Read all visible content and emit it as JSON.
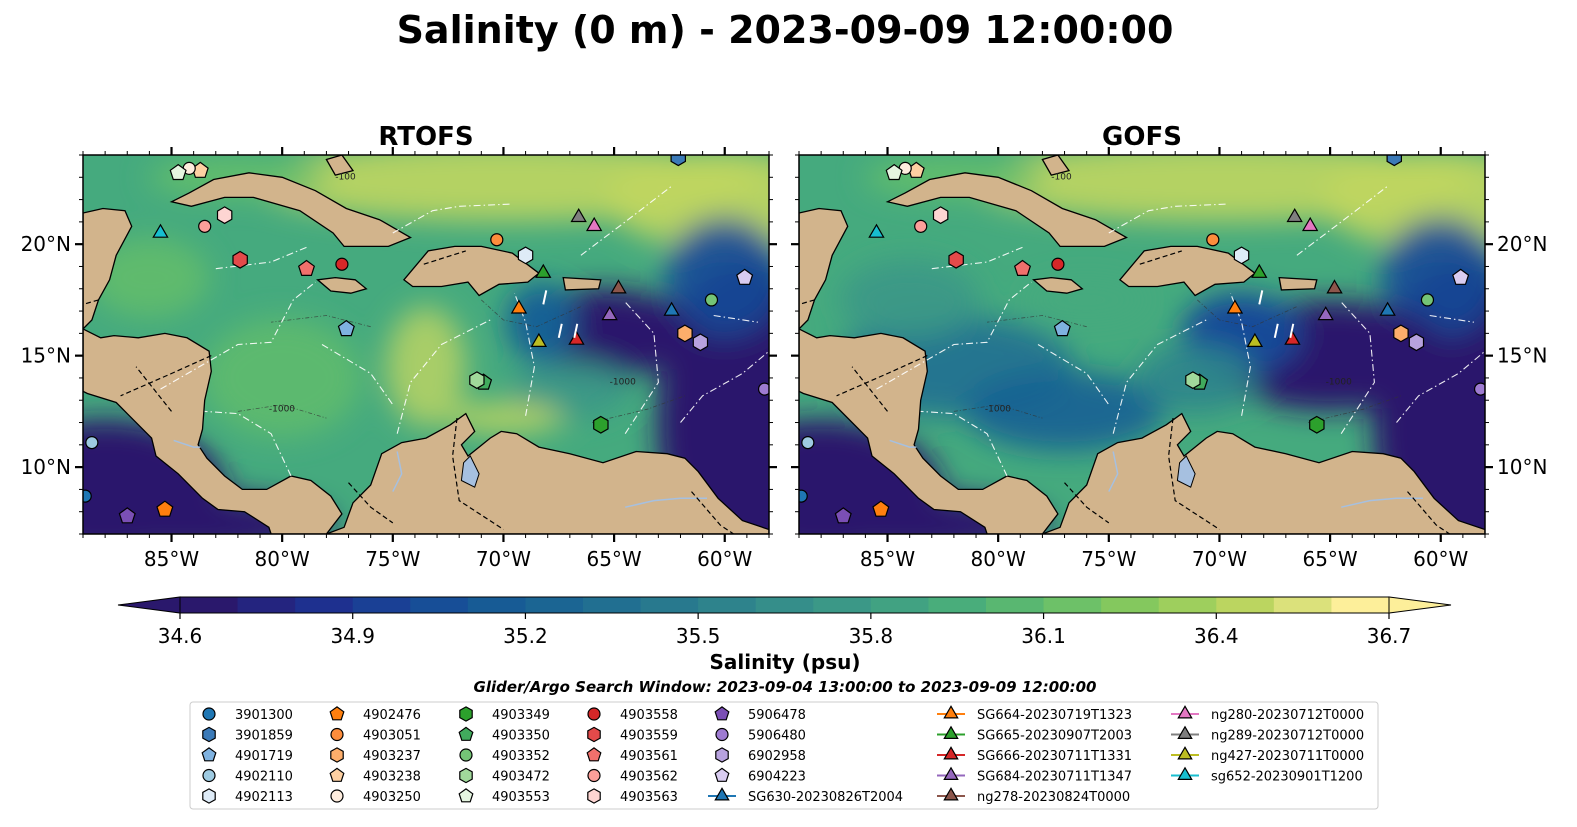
{
  "figure": {
    "title": "Salinity (0 m) - 2023-09-09 12:00:00",
    "subtitle": "Glider/Argo Search Window: 2023-09-04 13:00:00 to 2023-09-09 12:00:00"
  },
  "panels": [
    {
      "title": "RTOFS",
      "variant": "rtofs"
    },
    {
      "title": "GOFS",
      "variant": "gofs"
    }
  ],
  "map": {
    "lon_range": [
      -89,
      -58
    ],
    "lat_range": [
      7,
      24
    ],
    "lon_ticks": [
      {
        "v": -85,
        "label": "85°W"
      },
      {
        "v": -80,
        "label": "80°W"
      },
      {
        "v": -75,
        "label": "75°W"
      },
      {
        "v": -70,
        "label": "70°W"
      },
      {
        "v": -65,
        "label": "65°W"
      },
      {
        "v": -60,
        "label": "60°W"
      }
    ],
    "lat_ticks": [
      {
        "v": 20,
        "label": "20°N"
      },
      {
        "v": 15,
        "label": "15°N"
      },
      {
        "v": 10,
        "label": "10°N"
      }
    ],
    "land_color": "#d2b48c",
    "lake_color": "#a6c0e0",
    "contour_labels": [
      "-100",
      "-1000"
    ]
  },
  "colorbar": {
    "label": "Salinity (psu)",
    "min": 34.6,
    "max": 36.7,
    "ticks": [
      "34.6",
      "34.9",
      "35.2",
      "35.5",
      "35.8",
      "36.1",
      "36.4",
      "36.7"
    ],
    "colormap": "haline",
    "extend": "both"
  },
  "chart_data": {
    "type": "heatmap",
    "title": "Salinity (0 m) - 2023-09-09 12:00:00",
    "panels": [
      "RTOFS",
      "GOFS"
    ],
    "variable": "Salinity",
    "unit": "psu",
    "depth": "0 m",
    "time": "2023-09-09 12:00:00",
    "color_range": [
      34.6,
      36.7
    ],
    "xlabel": "",
    "ylabel": "",
    "xlim": [
      -89,
      -58
    ],
    "ylim": [
      7,
      24
    ],
    "legend_placement": "below",
    "floats": [
      {
        "id": "3901300",
        "marker": "circle",
        "color": "#1f77b4",
        "lon": -88.9,
        "lat": 8.7
      },
      {
        "id": "3901859",
        "marker": "hexagon",
        "color": "#3b7ab8",
        "lon": -62.1,
        "lat": 23.9
      },
      {
        "id": "4901719",
        "marker": "pentagon",
        "color": "#7fb2e0",
        "lon": -77.1,
        "lat": 16.2
      },
      {
        "id": "4902110",
        "marker": "circle",
        "color": "#9ecae1",
        "lon": -88.6,
        "lat": 11.1
      },
      {
        "id": "4902113",
        "marker": "hexagon",
        "color": "#deebf7",
        "lon": -69.0,
        "lat": 19.5
      },
      {
        "id": "4902476",
        "marker": "pentagon",
        "color": "#ff7f0e",
        "lon": -85.3,
        "lat": 8.1
      },
      {
        "id": "4903051",
        "marker": "circle",
        "color": "#fd8d3c",
        "lon": -70.3,
        "lat": 20.2
      },
      {
        "id": "4903237",
        "marker": "hexagon",
        "color": "#fdae6b",
        "lon": -61.8,
        "lat": 16.0
      },
      {
        "id": "4903238",
        "marker": "pentagon",
        "color": "#fdd0a2",
        "lon": -83.7,
        "lat": 23.3
      },
      {
        "id": "4903250",
        "marker": "circle",
        "color": "#feedde",
        "lon": -84.2,
        "lat": 23.4
      },
      {
        "id": "4903349",
        "marker": "hexagon",
        "color": "#2ca02c",
        "lon": -65.6,
        "lat": 11.9
      },
      {
        "id": "4903350",
        "marker": "pentagon",
        "color": "#41ab5d",
        "lon": -70.9,
        "lat": 13.8
      },
      {
        "id": "4903352",
        "marker": "circle",
        "color": "#74c476",
        "lon": -60.6,
        "lat": 17.5
      },
      {
        "id": "4903472",
        "marker": "hexagon",
        "color": "#a1d99b",
        "lon": -71.2,
        "lat": 13.9
      },
      {
        "id": "4903553",
        "marker": "pentagon",
        "color": "#e5f5e0",
        "lon": -84.7,
        "lat": 23.2
      },
      {
        "id": "4903558",
        "marker": "circle",
        "color": "#d62728",
        "lon": -77.3,
        "lat": 19.1
      },
      {
        "id": "4903559",
        "marker": "hexagon",
        "color": "#e34a4a",
        "lon": -81.9,
        "lat": 19.3
      },
      {
        "id": "4903561",
        "marker": "pentagon",
        "color": "#f0706c",
        "lon": -78.9,
        "lat": 18.9
      },
      {
        "id": "4903562",
        "marker": "circle",
        "color": "#fc9f9a",
        "lon": -83.5,
        "lat": 20.8
      },
      {
        "id": "4903563",
        "marker": "hexagon",
        "color": "#fdd5d2",
        "lon": -82.6,
        "lat": 21.3
      },
      {
        "id": "5906478",
        "marker": "pentagon",
        "color": "#7b4fb5",
        "lon": -87.0,
        "lat": 7.8
      },
      {
        "id": "5906480",
        "marker": "circle",
        "color": "#9e7bd1",
        "lon": -58.2,
        "lat": 13.5
      },
      {
        "id": "6902958",
        "marker": "hexagon",
        "color": "#b7a2de",
        "lon": -61.1,
        "lat": 15.6
      },
      {
        "id": "6904223",
        "marker": "pentagon",
        "color": "#d9ccf0",
        "lon": -59.1,
        "lat": 18.5
      },
      {
        "id": "SG630-20230826T2004",
        "marker": "triangle",
        "color": "#1f77b4",
        "lon": -62.4,
        "lat": 17.0
      },
      {
        "id": "SG664-20230719T1323",
        "marker": "triangle",
        "color": "#ff7f0e",
        "lon": -69.3,
        "lat": 17.1
      },
      {
        "id": "SG665-20230907T2003",
        "marker": "triangle",
        "color": "#2ca02c",
        "lon": -68.2,
        "lat": 18.7
      },
      {
        "id": "SG666-20230711T1331",
        "marker": "triangle",
        "color": "#d62728",
        "lon": -66.7,
        "lat": 15.7
      },
      {
        "id": "SG684-20230711T1347",
        "marker": "triangle",
        "color": "#9467bd",
        "lon": -65.2,
        "lat": 16.8
      },
      {
        "id": "ng278-20230824T0000",
        "marker": "triangle",
        "color": "#8c564b",
        "lon": -64.8,
        "lat": 18.0
      },
      {
        "id": "ng280-20230712T0000",
        "marker": "triangle",
        "color": "#e377c2",
        "lon": -65.9,
        "lat": 20.8
      },
      {
        "id": "ng289-20230712T0000",
        "marker": "triangle",
        "color": "#7f7f7f",
        "lon": -66.6,
        "lat": 21.2
      },
      {
        "id": "ng427-20230711T0000",
        "marker": "triangle",
        "color": "#bcbd22",
        "lon": -68.4,
        "lat": 15.6
      },
      {
        "id": "sg652-20230901T1200",
        "marker": "triangle",
        "color": "#17becf",
        "lon": -85.5,
        "lat": 20.5
      }
    ]
  },
  "legend": {
    "columns": [
      [
        {
          "label": "3901300",
          "marker": "circle",
          "color": "#1f77b4"
        },
        {
          "label": "3901859",
          "marker": "hexagon",
          "color": "#3b7ab8"
        },
        {
          "label": "4901719",
          "marker": "pentagon",
          "color": "#7fb2e0"
        },
        {
          "label": "4902110",
          "marker": "circle",
          "color": "#9ecae1"
        },
        {
          "label": "4902113",
          "marker": "hexagon",
          "color": "#deebf7"
        }
      ],
      [
        {
          "label": "4902476",
          "marker": "pentagon",
          "color": "#ff7f0e"
        },
        {
          "label": "4903051",
          "marker": "circle",
          "color": "#fd8d3c"
        },
        {
          "label": "4903237",
          "marker": "hexagon",
          "color": "#fdae6b"
        },
        {
          "label": "4903238",
          "marker": "pentagon",
          "color": "#fdd0a2"
        },
        {
          "label": "4903250",
          "marker": "circle",
          "color": "#feedde"
        }
      ],
      [
        {
          "label": "4903349",
          "marker": "hexagon",
          "color": "#2ca02c"
        },
        {
          "label": "4903350",
          "marker": "pentagon",
          "color": "#41ab5d"
        },
        {
          "label": "4903352",
          "marker": "circle",
          "color": "#74c476"
        },
        {
          "label": "4903472",
          "marker": "hexagon",
          "color": "#a1d99b"
        },
        {
          "label": "4903553",
          "marker": "pentagon",
          "color": "#e5f5e0"
        }
      ],
      [
        {
          "label": "4903558",
          "marker": "circle",
          "color": "#d62728"
        },
        {
          "label": "4903559",
          "marker": "hexagon",
          "color": "#e34a4a"
        },
        {
          "label": "4903561",
          "marker": "pentagon",
          "color": "#f0706c"
        },
        {
          "label": "4903562",
          "marker": "circle",
          "color": "#fc9f9a"
        },
        {
          "label": "4903563",
          "marker": "hexagon",
          "color": "#fdd5d2"
        }
      ],
      [
        {
          "label": "5906478",
          "marker": "pentagon",
          "color": "#7b4fb5"
        },
        {
          "label": "5906480",
          "marker": "circle",
          "color": "#9e7bd1"
        },
        {
          "label": "6902958",
          "marker": "hexagon",
          "color": "#b7a2de"
        },
        {
          "label": "6904223",
          "marker": "pentagon",
          "color": "#d9ccf0"
        },
        {
          "label": "SG630-20230826T2004",
          "marker": "triangle-line",
          "color": "#1f77b4"
        }
      ],
      [
        {
          "label": "SG664-20230719T1323",
          "marker": "triangle-line",
          "color": "#ff7f0e"
        },
        {
          "label": "SG665-20230907T2003",
          "marker": "triangle-line",
          "color": "#2ca02c"
        },
        {
          "label": "SG666-20230711T1331",
          "marker": "triangle-line",
          "color": "#d62728"
        },
        {
          "label": "SG684-20230711T1347",
          "marker": "triangle-line",
          "color": "#9467bd"
        },
        {
          "label": "ng278-20230824T0000",
          "marker": "triangle-line",
          "color": "#8c564b"
        }
      ],
      [
        {
          "label": "ng280-20230712T0000",
          "marker": "triangle-line",
          "color": "#e377c2"
        },
        {
          "label": "ng289-20230712T0000",
          "marker": "triangle-line",
          "color": "#7f7f7f"
        },
        {
          "label": "ng427-20230711T0000",
          "marker": "triangle-line",
          "color": "#bcbd22"
        },
        {
          "label": "sg652-20230901T1200",
          "marker": "triangle-line",
          "color": "#17becf"
        }
      ]
    ]
  }
}
